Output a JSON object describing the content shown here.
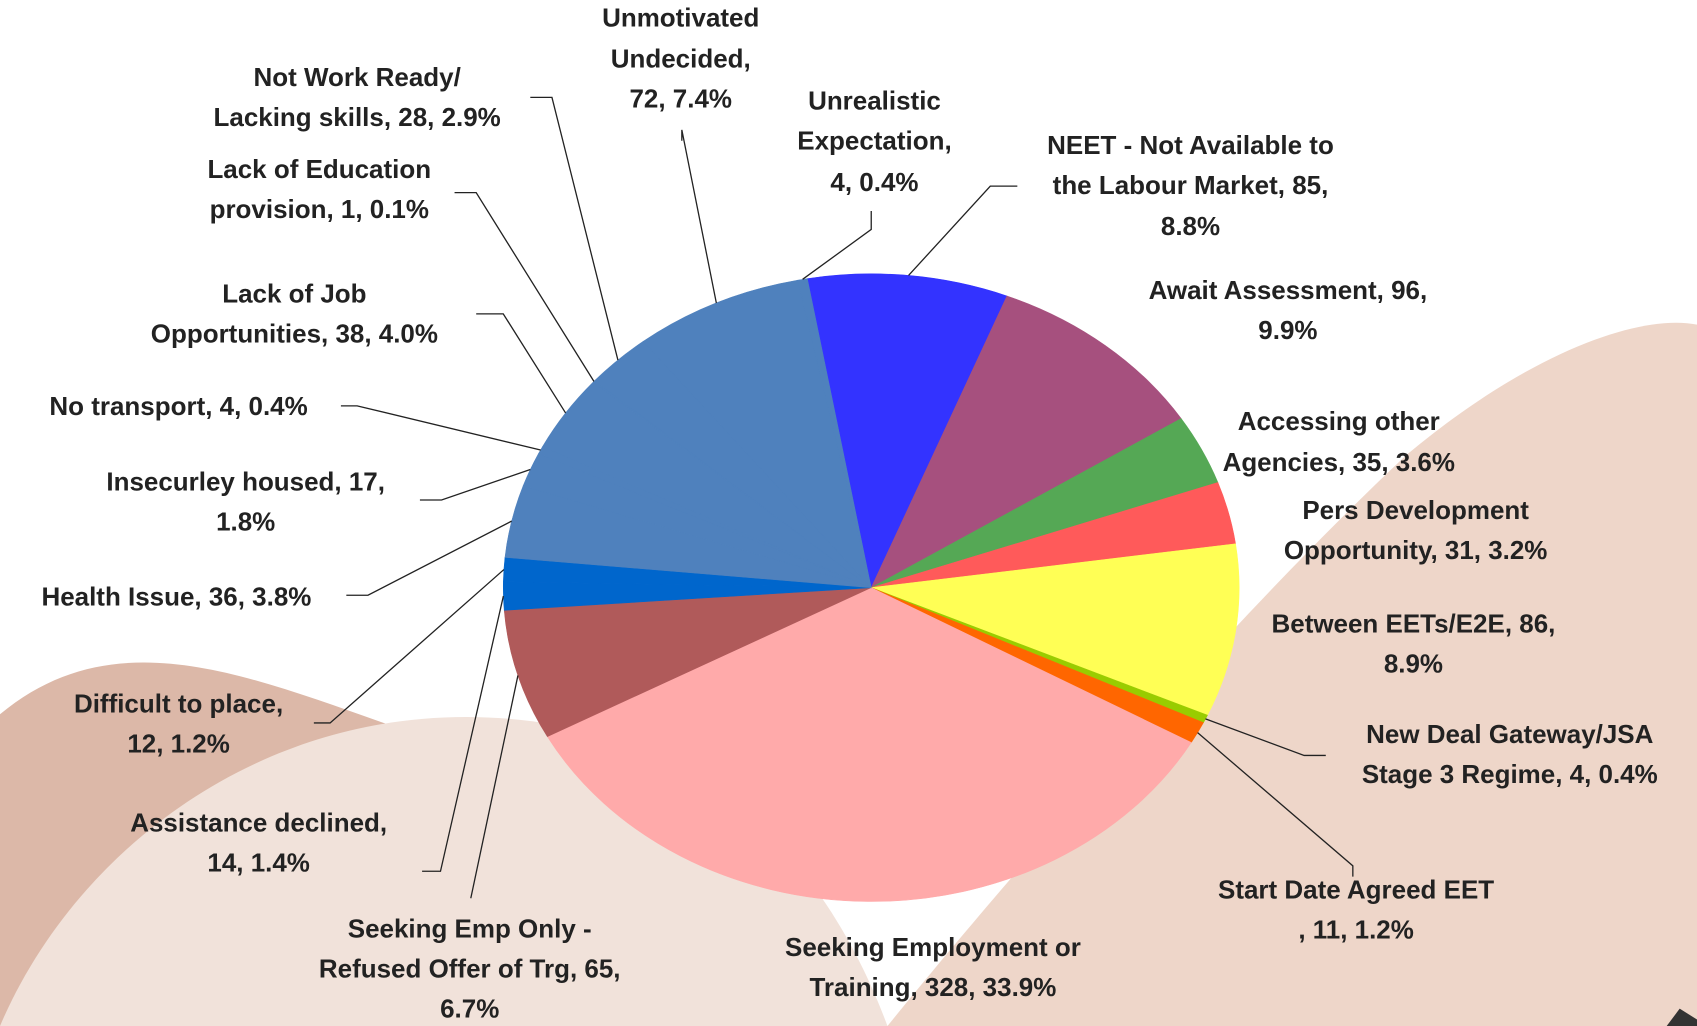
{
  "chart_data": {
    "type": "pie",
    "categories": [
      "NEET - Not Available to the Labour Market",
      "Await Assessment",
      "Accessing other Agencies",
      "Pers Development Opportunity",
      "Between EETs/E2E",
      "New Deal Gateway/JSA Stage 3 Regime",
      "Start Date Agreed EET",
      "Seeking Employment or Training",
      "Seeking Emp Only - Refused Offer of Trg",
      "Assistance declined",
      "Difficult to place",
      "Health Issue",
      "Insecurley housed",
      "No transport",
      "Lack of Job Opportunities",
      "Lack of Education provision",
      "Not Work Ready/ Lacking skills",
      "Unmotivated Undecided",
      "Unrealistic Expectation"
    ],
    "values": [
      85,
      96,
      35,
      31,
      86,
      4,
      11,
      328,
      65,
      14,
      12,
      36,
      17,
      4,
      38,
      1,
      28,
      72,
      4
    ],
    "labels": [
      [
        "NEET - Not Available to",
        "the Labour Market, 85,",
        "8.8%"
      ],
      [
        "Await Assessment, 96,",
        "9.9%"
      ],
      [
        "Accessing other",
        "Agencies, 35, 3.6%"
      ],
      [
        "Pers Development",
        "Opportunity, 31, 3.2%"
      ],
      [
        "Between EETs/E2E, 86,",
        "8.9%"
      ],
      [
        "New Deal Gateway/JSA",
        "Stage 3 Regime, 4, 0.4%"
      ],
      [
        "Start Date Agreed EET",
        ", 11, 1.2%"
      ],
      [
        "Seeking Employment or",
        "Training, 328, 33.9%"
      ],
      [
        "Seeking Emp Only -",
        "Refused Offer of Trg, 65,",
        "6.7%"
      ],
      [
        "Assistance declined,",
        "14, 1.4%"
      ],
      [
        "Difficult to place,",
        "12, 1.2%"
      ],
      [
        "Health Issue, 36, 3.8%"
      ],
      [
        "Insecurley housed, 17,",
        "1.8%"
      ],
      [
        "No transport, 4, 0.4%"
      ],
      [
        "Lack of Job",
        "Opportunities, 38, 4.0%"
      ],
      [
        "Lack of Education",
        "provision, 1, 0.1%"
      ],
      [
        "Not Work Ready/",
        "Lacking skills, 28, 2.9%"
      ],
      [
        "Unmotivated",
        "Undecided,",
        "72, 7.4%"
      ],
      [
        "Unrealistic",
        "Expectation,",
        "4, 0.4%"
      ]
    ],
    "colors": [
      "#3333ff",
      "#a6507e",
      "#55a855",
      "#ff5a5a",
      "#ffff55",
      "#99cc00",
      "#ff6600",
      "#ffaaaa",
      "#b05a5a",
      "#0066cc",
      "#0066cc",
      "#4f81bd",
      "#4f81bd",
      "#4f81bd",
      "#4f81bd",
      "#4f81bd",
      "#4f81bd",
      "#4f81bd",
      "#4f81bd"
    ]
  }
}
